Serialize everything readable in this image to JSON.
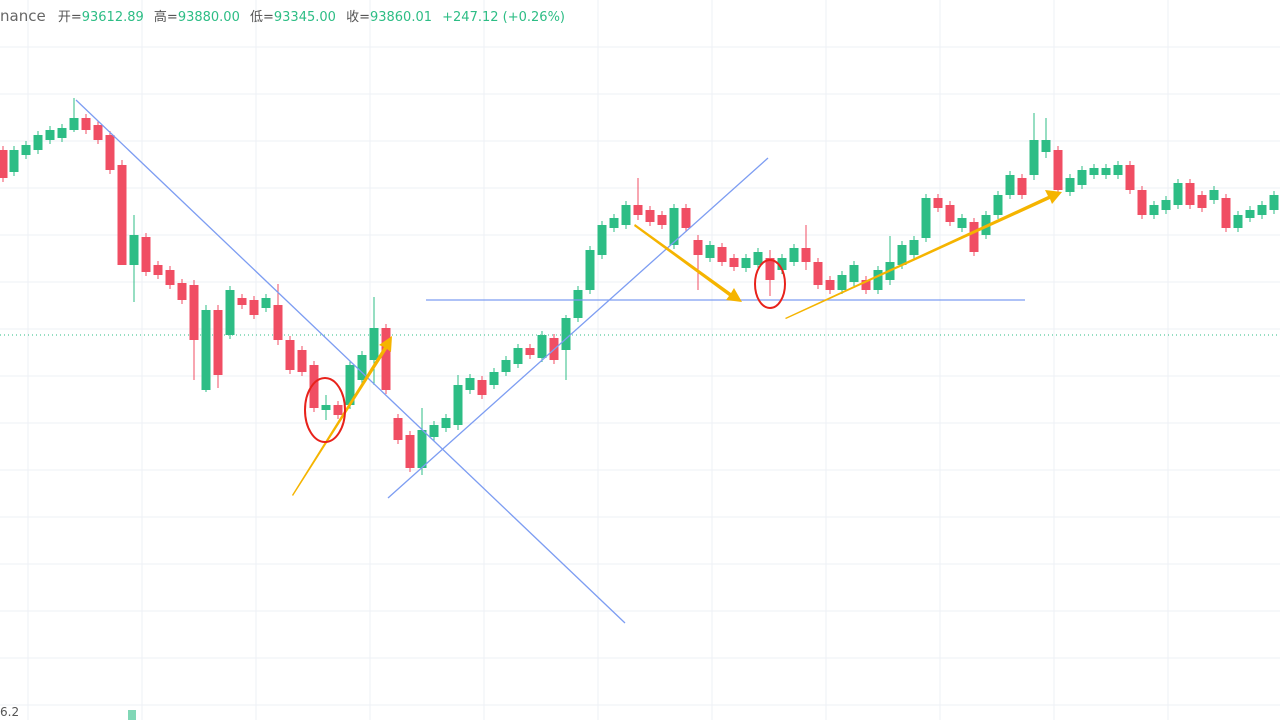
{
  "header": {
    "source": "nance",
    "quotes": [
      {
        "label": "开=",
        "value": "93612.89"
      },
      {
        "label": "高=",
        "value": "93880.00"
      },
      {
        "label": "低=",
        "value": "93345.00"
      },
      {
        "label": "收=",
        "value": "93860.01"
      }
    ],
    "change": "+247.12 (+0.26%)"
  },
  "footer": {
    "axis_label": "6.2"
  }
}
